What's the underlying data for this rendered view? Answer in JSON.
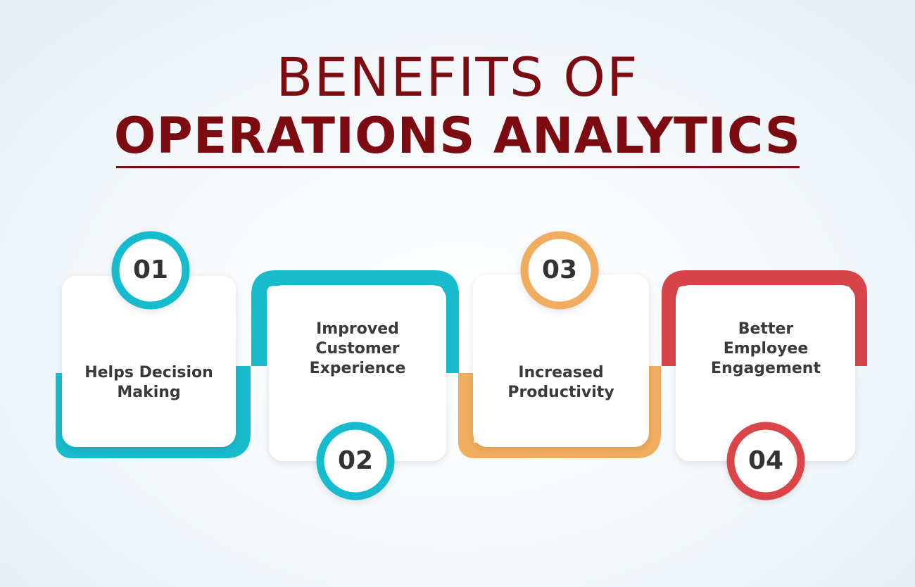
{
  "title": {
    "line1": "BENEFITS OF",
    "line2": "OPERATIONS ANALYTICS"
  },
  "colors": {
    "title": "#7c0c12",
    "teal": "#18bccd",
    "orange": "#f0ad5e",
    "red": "#d9444a",
    "text": "#3a3a3a"
  },
  "steps": [
    {
      "number": "01",
      "line1": "Helps Decision",
      "line2": "Making",
      "line3": "",
      "color": "teal"
    },
    {
      "number": "02",
      "line1": "Improved",
      "line2": "Customer",
      "line3": "Experience",
      "color": "teal"
    },
    {
      "number": "03",
      "line1": "Increased",
      "line2": "Productivity",
      "line3": "",
      "color": "orange"
    },
    {
      "number": "04",
      "line1": "Better",
      "line2": "Employee",
      "line3": "Engagement",
      "color": "red"
    }
  ]
}
